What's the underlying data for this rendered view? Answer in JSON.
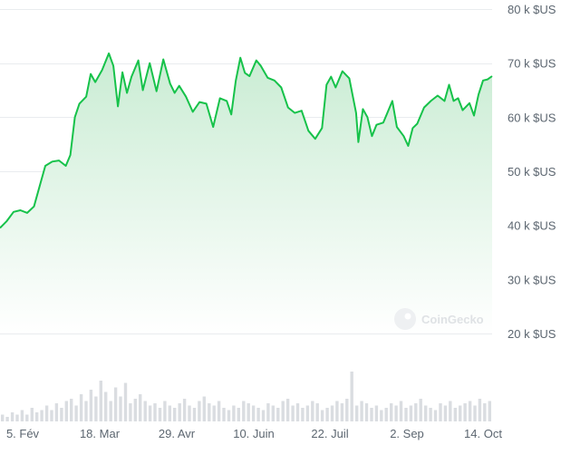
{
  "chart_data": {
    "type": "area",
    "title": "",
    "currency_unit": "k $US",
    "y_ticks": [
      "80 k $US",
      "70 k $US",
      "60 k $US",
      "50 k $US",
      "40 k $US",
      "30 k $US",
      "20 k $US"
    ],
    "y_tick_values": [
      80000,
      70000,
      60000,
      50000,
      40000,
      30000,
      20000
    ],
    "ylim": [
      20000,
      80000
    ],
    "x_ticks": [
      "5. Fév",
      "18. Mar",
      "29. Avr",
      "10. Juin",
      "22. Juil",
      "2. Sep",
      "14. Oct"
    ],
    "grid": true,
    "watermark": "CoinGecko",
    "colors": {
      "line": "#16c24a",
      "fill_top": "#c9ecd3",
      "fill_bottom": "#ffffff",
      "grid": "#e9ecef",
      "label": "#5c6670",
      "volume": "#dadde1"
    },
    "series": [
      {
        "kind": "price",
        "points": [
          [
            0,
            39500
          ],
          [
            3,
            40800
          ],
          [
            6,
            42500
          ],
          [
            9,
            42800
          ],
          [
            12,
            42300
          ],
          [
            15,
            43500
          ],
          [
            18,
            48000
          ],
          [
            20,
            51000
          ],
          [
            23,
            51800
          ],
          [
            26,
            52000
          ],
          [
            29,
            51000
          ],
          [
            31,
            53000
          ],
          [
            33,
            60000
          ],
          [
            35,
            62500
          ],
          [
            38,
            63800
          ],
          [
            40,
            68000
          ],
          [
            42,
            66500
          ],
          [
            45,
            68700
          ],
          [
            48,
            71800
          ],
          [
            50,
            69500
          ],
          [
            52,
            62000
          ],
          [
            54,
            68300
          ],
          [
            56,
            64500
          ],
          [
            58,
            67500
          ],
          [
            61,
            70500
          ],
          [
            63,
            65000
          ],
          [
            66,
            70000
          ],
          [
            69,
            64800
          ],
          [
            72,
            70700
          ],
          [
            75,
            66200
          ],
          [
            77,
            64500
          ],
          [
            79,
            65800
          ],
          [
            82,
            63800
          ],
          [
            85,
            61000
          ],
          [
            88,
            62800
          ],
          [
            91,
            62500
          ],
          [
            94,
            58200
          ],
          [
            97,
            63500
          ],
          [
            100,
            63000
          ],
          [
            102,
            60500
          ],
          [
            104,
            66800
          ],
          [
            106,
            71000
          ],
          [
            108,
            68200
          ],
          [
            110,
            67600
          ],
          [
            113,
            70500
          ],
          [
            115,
            69500
          ],
          [
            118,
            67300
          ],
          [
            121,
            66800
          ],
          [
            124,
            65500
          ],
          [
            127,
            61800
          ],
          [
            130,
            60800
          ],
          [
            133,
            61200
          ],
          [
            136,
            57500
          ],
          [
            139,
            56000
          ],
          [
            142,
            58000
          ],
          [
            144,
            66000
          ],
          [
            146,
            67500
          ],
          [
            148,
            65500
          ],
          [
            151,
            68500
          ],
          [
            154,
            67200
          ],
          [
            157,
            60800
          ],
          [
            158,
            55400
          ],
          [
            160,
            61500
          ],
          [
            162,
            60000
          ],
          [
            164,
            56500
          ],
          [
            166,
            58600
          ],
          [
            169,
            59000
          ],
          [
            171,
            61000
          ],
          [
            173,
            63000
          ],
          [
            175,
            58200
          ],
          [
            178,
            56500
          ],
          [
            180,
            54700
          ],
          [
            182,
            58000
          ],
          [
            184,
            58800
          ],
          [
            187,
            61800
          ],
          [
            190,
            63000
          ],
          [
            193,
            64000
          ],
          [
            196,
            63000
          ],
          [
            198,
            66000
          ],
          [
            200,
            63000
          ],
          [
            202,
            63500
          ],
          [
            204,
            61300
          ],
          [
            207,
            62600
          ],
          [
            209,
            60300
          ],
          [
            211,
            64200
          ],
          [
            213,
            66800
          ],
          [
            215,
            67000
          ],
          [
            217,
            67600
          ]
        ]
      },
      {
        "kind": "volume",
        "values": [
          3,
          2,
          4,
          3,
          5,
          3,
          6,
          4,
          5,
          7,
          5,
          8,
          6,
          9,
          10,
          7,
          12,
          9,
          14,
          11,
          18,
          13,
          9,
          15,
          11,
          17,
          8,
          10,
          12,
          9,
          7,
          8,
          6,
          9,
          7,
          6,
          8,
          10,
          7,
          6,
          9,
          11,
          8,
          7,
          9,
          6,
          5,
          7,
          6,
          9,
          8,
          7,
          6,
          5,
          8,
          7,
          6,
          9,
          10,
          7,
          8,
          6,
          7,
          9,
          8,
          5,
          6,
          7,
          9,
          8,
          10,
          22,
          7,
          9,
          8,
          6,
          7,
          5,
          6,
          8,
          7,
          9,
          6,
          7,
          8,
          10,
          7,
          6,
          5,
          8,
          7,
          9,
          6,
          7,
          8,
          9,
          7,
          10,
          8,
          9
        ]
      }
    ]
  }
}
